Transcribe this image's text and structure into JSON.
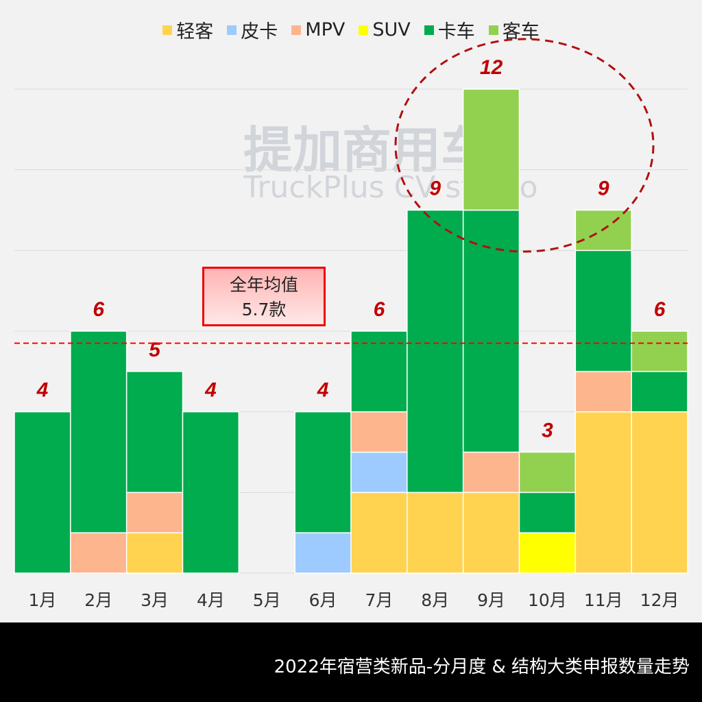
{
  "chart_data": {
    "type": "bar",
    "stacked": true,
    "title": "2022年宿营类新品-分月度 & 结构大类申报数量走势",
    "categories": [
      "1月",
      "2月",
      "3月",
      "4月",
      "5月",
      "6月",
      "7月",
      "8月",
      "9月",
      "10月",
      "11月",
      "12月"
    ],
    "series": [
      {
        "name": "轻客",
        "color": "#ffd34f",
        "values": [
          0,
          0,
          1,
          0,
          0,
          0,
          2,
          2,
          2,
          0,
          4,
          4
        ]
      },
      {
        "name": "皮卡",
        "color": "#9dcbff",
        "values": [
          0,
          0,
          0,
          0,
          0,
          1,
          1,
          0,
          0,
          0,
          0,
          0
        ]
      },
      {
        "name": "MPV",
        "color": "#fdb58d",
        "values": [
          0,
          1,
          1,
          0,
          0,
          0,
          1,
          0,
          1,
          0,
          1,
          0
        ]
      },
      {
        "name": "SUV",
        "color": "#ffff00",
        "values": [
          0,
          0,
          0,
          0,
          0,
          0,
          0,
          0,
          0,
          1,
          0,
          0
        ]
      },
      {
        "name": "卡车",
        "color": "#00ac4e",
        "values": [
          4,
          5,
          3,
          4,
          0,
          3,
          2,
          7,
          6,
          1,
          3,
          1
        ]
      },
      {
        "name": "客车",
        "color": "#92d050",
        "values": [
          0,
          0,
          0,
          0,
          0,
          0,
          0,
          0,
          3,
          1,
          1,
          1
        ]
      }
    ],
    "totals_labels": [
      "4",
      "6",
      "5",
      "4",
      "",
      "4",
      "6",
      "9",
      "12",
      "3",
      "9",
      "6"
    ],
    "ylim": [
      0,
      12
    ],
    "grid_step": 2,
    "average": 5.7,
    "legend_position": "top"
  },
  "annotation": {
    "line1": "全年均值",
    "line2": "5.7款"
  },
  "watermark": {
    "cn": "提加商用车",
    "en": "TruckPlus CV studio"
  }
}
